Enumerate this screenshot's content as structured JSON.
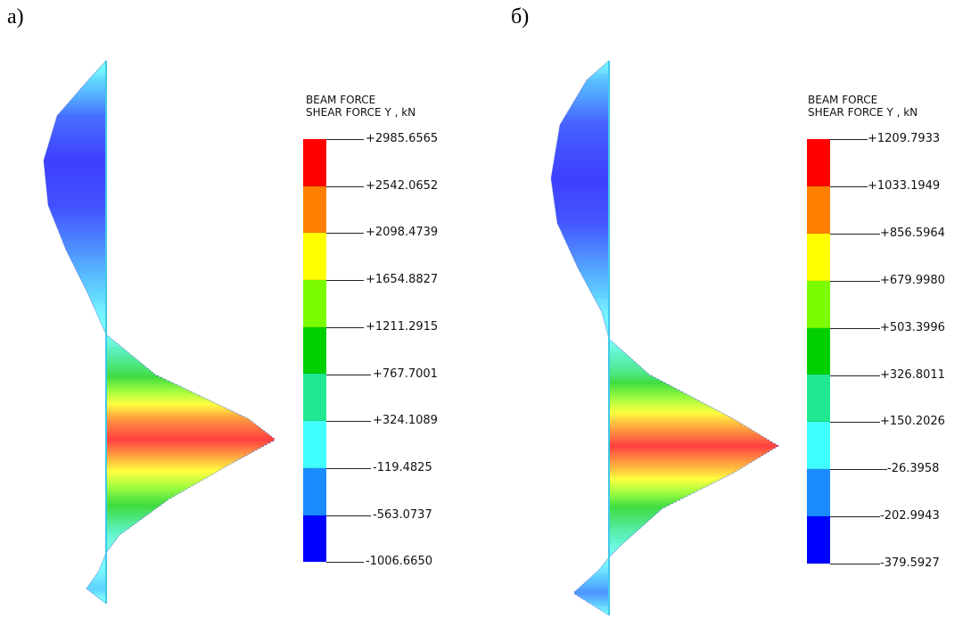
{
  "panels": [
    {
      "label": "а)",
      "legend_title_1": "BEAM FORCE",
      "legend_title_2": "SHEAR FORCE Y , kN",
      "levels": [
        "+2985.6565",
        "+2542.0652",
        "+2098.4739",
        "+1654.8827",
        "+1211.2915",
        "+767.7001",
        "+324.1089",
        "-119.4825",
        "-563.0737",
        "-1006.6650"
      ],
      "colors": [
        "#ff0000",
        "#ff8000",
        "#ffff00",
        "#7cfc00",
        "#00d000",
        "#20e890",
        "#40ffff",
        "#1a8cff",
        "#0000ff"
      ]
    },
    {
      "label": "б)",
      "legend_title_1": "BEAM FORCE",
      "legend_title_2": "SHEAR FORCE Y , kN",
      "levels": [
        "+1209.7933",
        "+1033.1949",
        "+856.5964",
        "+679.9980",
        "+503.3996",
        "+326.8011",
        "+150.2026",
        "-26.3958",
        "-202.9943",
        "-379.5927"
      ],
      "colors": [
        "#ff0000",
        "#ff8000",
        "#ffff00",
        "#7cfc00",
        "#00d000",
        "#20e890",
        "#40ffff",
        "#1a8cff",
        "#0000ff"
      ]
    }
  ]
}
